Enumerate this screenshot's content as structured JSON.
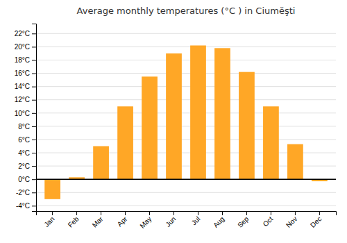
{
  "chart_data": {
    "type": "bar",
    "title": "Average monthly temperatures (°C ) in Ciumĕşti",
    "categories": [
      "Jan",
      "Feb",
      "Mar",
      "Apr",
      "May",
      "Jun",
      "Jul",
      "Aug",
      "Sep",
      "Oct",
      "Nov",
      "Dec"
    ],
    "values": [
      -3.0,
      0.3,
      5.0,
      11.0,
      15.5,
      19.0,
      20.2,
      19.8,
      16.2,
      11.0,
      5.3,
      -0.3
    ],
    "color": "#FFA726",
    "ylim": [
      -4.8,
      23.5
    ],
    "yticks": [
      {
        "value": -4,
        "label": "-4°C"
      },
      {
        "value": -2,
        "label": "-2°C"
      },
      {
        "value": 0,
        "label": "0°C"
      },
      {
        "value": 2,
        "label": "2°C"
      },
      {
        "value": 4,
        "label": "4°C"
      },
      {
        "value": 6,
        "label": "6°C"
      },
      {
        "value": 8,
        "label": "8°C"
      },
      {
        "value": 10,
        "label": "10°C"
      },
      {
        "value": 12,
        "label": "12°C"
      },
      {
        "value": 14,
        "label": "14°C"
      },
      {
        "value": 16,
        "label": "16°C"
      },
      {
        "value": 18,
        "label": "18°C"
      },
      {
        "value": 20,
        "label": "20°C"
      },
      {
        "value": 22,
        "label": "22°C"
      }
    ],
    "grid": true
  }
}
